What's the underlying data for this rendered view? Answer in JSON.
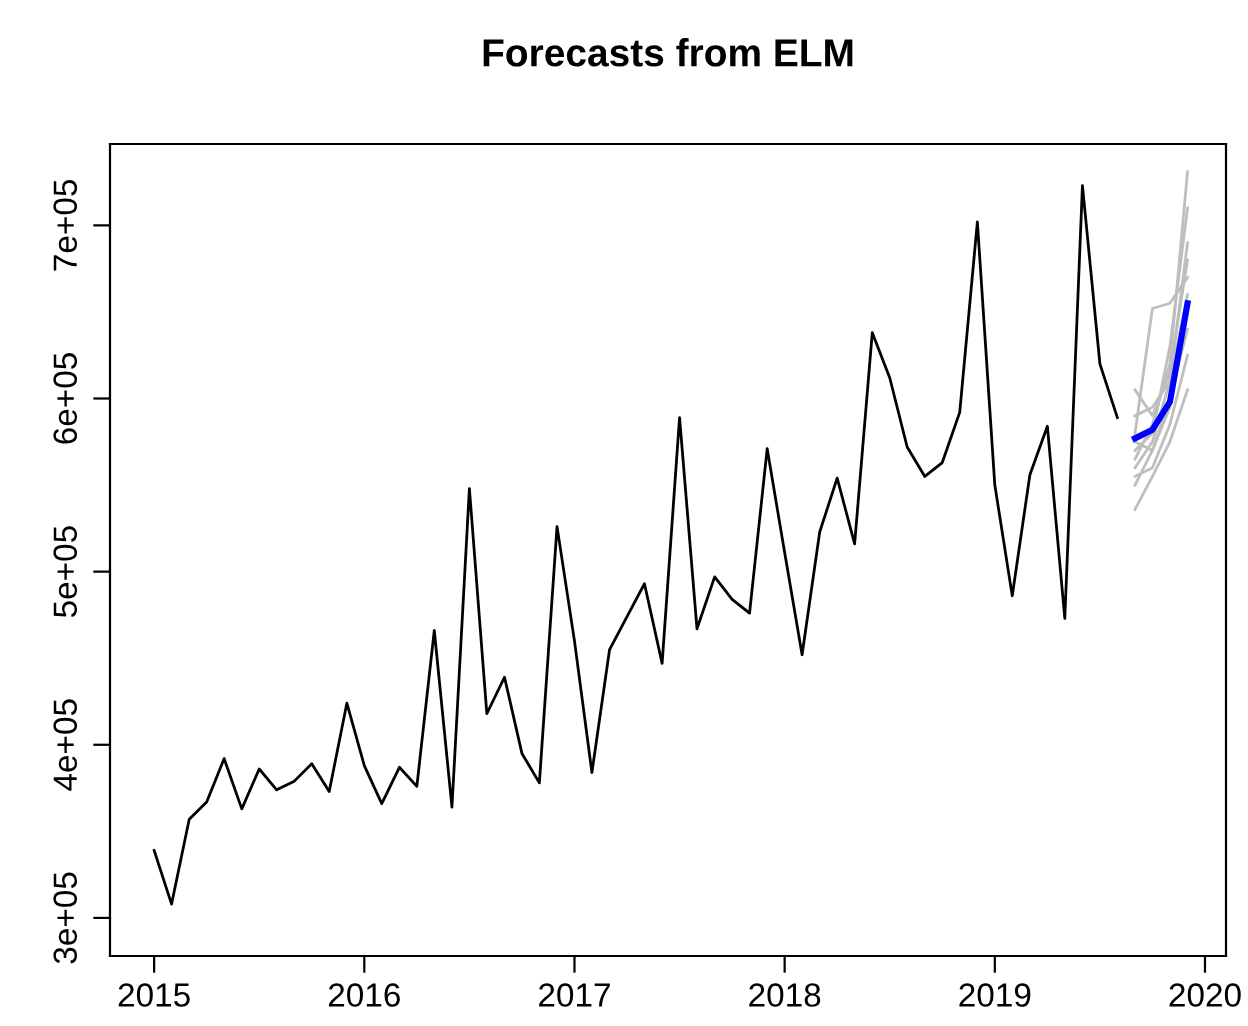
{
  "chart_data": {
    "type": "line",
    "title": "Forecasts from ELM",
    "xlim": [
      2014.79,
      2020.1
    ],
    "xticks": [
      2015,
      2016,
      2017,
      2018,
      2019,
      2020
    ],
    "ylim": [
      278000,
      747000
    ],
    "yticks": [
      {
        "value": 300000,
        "label": "3e+05"
      },
      {
        "value": 400000,
        "label": "4e+05"
      },
      {
        "value": 500000,
        "label": "5e+05"
      },
      {
        "value": 600000,
        "label": "6e+05"
      },
      {
        "value": 700000,
        "label": "7e+05"
      }
    ],
    "grid": false,
    "legend": false,
    "series": [
      {
        "color": "#000000",
        "x": [
          2015.0,
          2015.083,
          2015.167,
          2015.25,
          2015.333,
          2015.417,
          2015.5,
          2015.583,
          2015.667,
          2015.75,
          2015.833,
          2015.917,
          2016.0,
          2016.083,
          2016.167,
          2016.25,
          2016.333,
          2016.417,
          2016.5,
          2016.583,
          2016.667,
          2016.75,
          2016.833,
          2016.917,
          2017.0,
          2017.083,
          2017.167,
          2017.25,
          2017.333,
          2017.417,
          2017.5,
          2017.583,
          2017.667,
          2017.75,
          2017.833,
          2017.917,
          2018.0,
          2018.083,
          2018.167,
          2018.25,
          2018.333,
          2018.417,
          2018.5,
          2018.583,
          2018.667,
          2018.75,
          2018.833,
          2018.917,
          2019.0,
          2019.083,
          2019.167,
          2019.25,
          2019.333,
          2019.417,
          2019.5,
          2019.583
        ],
        "values": [
          339000,
          308000,
          357000,
          367000,
          392000,
          363000,
          386000,
          374000,
          379000,
          389000,
          373000,
          424000,
          388000,
          366000,
          387000,
          376000,
          466000,
          364000,
          548000,
          418000,
          439000,
          395000,
          378000,
          526000,
          460000,
          384000,
          455000,
          474000,
          493000,
          447000,
          589000,
          467000,
          497000,
          484000,
          476000,
          571000,
          511000,
          452000,
          523000,
          554000,
          516000,
          638000,
          612000,
          572000,
          555000,
          563000,
          592000,
          702000,
          550000,
          486000,
          556000,
          584000,
          473000,
          723000,
          620000,
          589000
        ]
      },
      {
        "color": "#bebebe",
        "x": [
          2019.667,
          2019.75,
          2019.833,
          2019.917
        ],
        "values": [
          536000,
          555000,
          575000,
          605000
        ]
      },
      {
        "color": "#bebebe",
        "x": [
          2019.667,
          2019.75,
          2019.833,
          2019.917
        ],
        "values": [
          550000,
          570000,
          600000,
          640000
        ]
      },
      {
        "color": "#bebebe",
        "x": [
          2019.667,
          2019.75,
          2019.833,
          2019.917
        ],
        "values": [
          560000,
          575000,
          610000,
          660000
        ]
      },
      {
        "color": "#bebebe",
        "x": [
          2019.667,
          2019.75,
          2019.833,
          2019.917
        ],
        "values": [
          565000,
          585000,
          620000,
          731000
        ]
      },
      {
        "color": "#bebebe",
        "x": [
          2019.667,
          2019.75,
          2019.833,
          2019.917
        ],
        "values": [
          570000,
          580000,
          630000,
          710000
        ]
      },
      {
        "color": "#bebebe",
        "x": [
          2019.667,
          2019.75,
          2019.833,
          2019.917
        ],
        "values": [
          580000,
          652000,
          655000,
          670000
        ]
      },
      {
        "color": "#bebebe",
        "x": [
          2019.667,
          2019.75,
          2019.833,
          2019.917
        ],
        "values": [
          590000,
          595000,
          610000,
          690000
        ]
      },
      {
        "color": "#bebebe",
        "x": [
          2019.667,
          2019.75,
          2019.833,
          2019.917
        ],
        "values": [
          555000,
          560000,
          585000,
          625000
        ]
      },
      {
        "color": "#bebebe",
        "x": [
          2019.667,
          2019.75,
          2019.833,
          2019.917
        ],
        "values": [
          605000,
          590000,
          615000,
          680000
        ]
      },
      {
        "color": "#bebebe",
        "x": [
          2019.667,
          2019.75,
          2019.833,
          2019.917
        ],
        "values": [
          575000,
          570000,
          595000,
          650000
        ]
      },
      {
        "color": "#0000ff",
        "x": [
          2019.667,
          2019.75,
          2019.833,
          2019.917
        ],
        "values": [
          577000,
          582000,
          598000,
          655000
        ]
      }
    ]
  }
}
